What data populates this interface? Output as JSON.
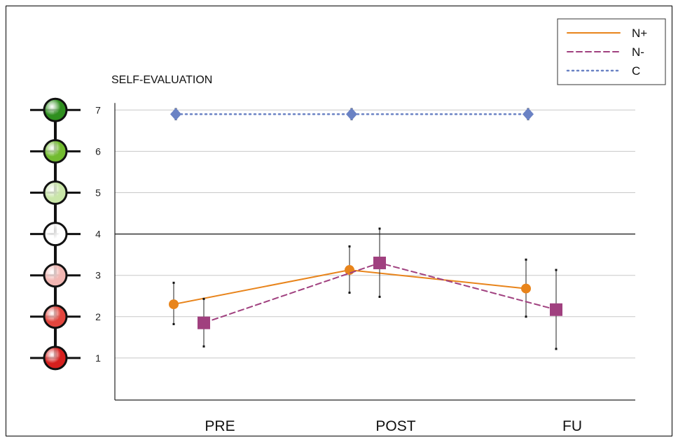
{
  "chart_data": {
    "type": "line",
    "title": "SELF-EVALUATION",
    "xlabel": "",
    "ylabel": "",
    "categories": [
      "PRE",
      "POST",
      "FU"
    ],
    "ylim": [
      0,
      7
    ],
    "yticks": [
      1,
      2,
      3,
      4,
      5,
      6,
      7
    ],
    "grid": true,
    "legend_position": "top-right",
    "reference_line": 4,
    "series": [
      {
        "name": "N+",
        "color": "#E8841B",
        "line_style": "solid",
        "marker": "circle",
        "values": [
          2.3,
          3.13,
          2.68
        ],
        "err_upper": [
          2.82,
          3.7,
          3.38
        ],
        "err_lower": [
          1.82,
          2.58,
          2.0
        ]
      },
      {
        "name": "N-",
        "color": "#A0407F",
        "line_style": "dashed",
        "marker": "square",
        "values": [
          1.85,
          3.3,
          2.17
        ],
        "err_upper": [
          2.43,
          4.13,
          3.13
        ],
        "err_lower": [
          1.28,
          2.48,
          1.22
        ]
      },
      {
        "name": "C",
        "color": "#6A82C4",
        "line_style": "dotted",
        "marker": "diamond",
        "values": [
          6.9,
          6.9,
          6.9
        ],
        "err_upper": [
          7.02,
          7.02,
          7.02
        ],
        "err_lower": [
          6.78,
          6.78,
          6.78
        ]
      }
    ],
    "scale_circles": [
      {
        "level": 7,
        "color": "#2F8F1F"
      },
      {
        "level": 6,
        "color": "#72BB2F"
      },
      {
        "level": 5,
        "color": "#C9E6A8"
      },
      {
        "level": 4,
        "color": "#FFFFFF"
      },
      {
        "level": 3,
        "color": "#F2B6B2"
      },
      {
        "level": 2,
        "color": "#E2463E"
      },
      {
        "level": 1,
        "color": "#D6201E"
      }
    ]
  }
}
